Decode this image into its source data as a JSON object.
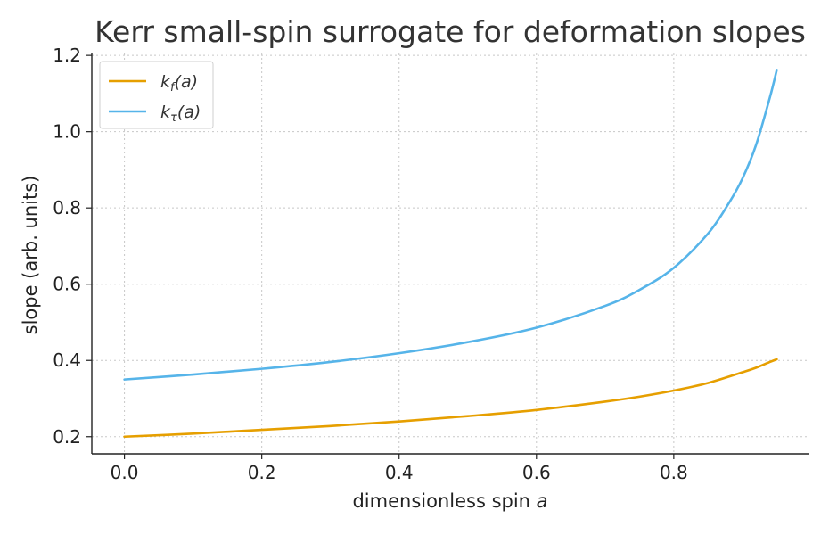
{
  "chart_data": {
    "type": "line",
    "title": "Kerr small-spin surrogate for deformation slopes",
    "xlabel": "dimensionless spin ",
    "xlabel_var": "a",
    "ylabel": "slope (arb. units)",
    "xlim": [
      -0.0475,
      0.9975
    ],
    "ylim": [
      0.155,
      1.205
    ],
    "x_ticks": [
      0.0,
      0.2,
      0.4,
      0.6,
      0.8
    ],
    "x_tick_labels": [
      "0.0",
      "0.2",
      "0.4",
      "0.6",
      "0.8"
    ],
    "y_ticks": [
      0.2,
      0.4,
      0.6,
      0.8,
      1.0,
      1.2
    ],
    "y_tick_labels": [
      "0.2",
      "0.4",
      "0.6",
      "0.8",
      "1.0",
      "1.2"
    ],
    "grid": true,
    "legend_position": "top-left",
    "series": [
      {
        "name": "k_f(a)",
        "legend_base": "k",
        "legend_sub": "f",
        "legend_suffix": "(a)",
        "color": "#E69F00",
        "x": [
          0.0,
          0.1,
          0.2,
          0.3,
          0.4,
          0.5,
          0.6,
          0.7,
          0.75,
          0.8,
          0.85,
          0.9,
          0.92,
          0.94,
          0.95
        ],
        "y": [
          0.2,
          0.208,
          0.218,
          0.228,
          0.24,
          0.254,
          0.27,
          0.292,
          0.305,
          0.321,
          0.341,
          0.369,
          0.381,
          0.396,
          0.403
        ]
      },
      {
        "name": "k_τ(a)",
        "legend_base": "k",
        "legend_sub": "τ",
        "legend_suffix": "(a)",
        "color": "#56B4E9",
        "x": [
          0.0,
          0.1,
          0.2,
          0.3,
          0.4,
          0.5,
          0.6,
          0.7,
          0.75,
          0.8,
          0.85,
          0.88,
          0.9,
          0.92,
          0.94,
          0.95
        ],
        "y": [
          0.35,
          0.363,
          0.378,
          0.396,
          0.419,
          0.448,
          0.486,
          0.543,
          0.585,
          0.643,
          0.733,
          0.812,
          0.877,
          0.966,
          1.09,
          1.162
        ]
      }
    ]
  }
}
